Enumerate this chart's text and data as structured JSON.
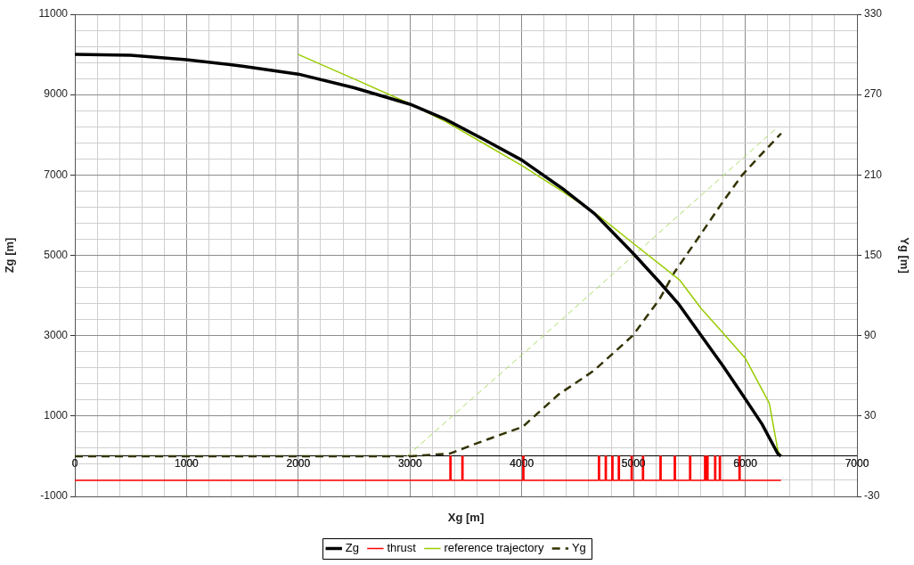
{
  "chart_data": {
    "type": "line",
    "xlabel": "Xg [m]",
    "ylabel": "Zg [m]",
    "y2label": "Yg [m]",
    "xlim": [
      0,
      7000
    ],
    "xticks": [
      0,
      {
        "value": 200,
        "label": null
      },
      {
        "value": 400,
        "label": null
      },
      {
        "value": 600,
        "label": null
      },
      {
        "value": 800,
        "label": null
      },
      1000,
      {
        "value": 1200,
        "label": null
      },
      {
        "value": 1400,
        "label": null
      },
      {
        "value": 1600,
        "label": null
      },
      {
        "value": 1800,
        "label": null
      },
      2000,
      {
        "value": 2200,
        "label": null
      },
      {
        "value": 2400,
        "label": null
      },
      {
        "value": 2600,
        "label": null
      },
      {
        "value": 2800,
        "label": null
      },
      3000,
      {
        "value": 3200,
        "label": null
      },
      {
        "value": 3400,
        "label": null
      },
      {
        "value": 3600,
        "label": null
      },
      {
        "value": 3800,
        "label": null
      },
      4000,
      {
        "value": 4200,
        "label": null
      },
      {
        "value": 4400,
        "label": null
      },
      {
        "value": 4600,
        "label": null
      },
      {
        "value": 4800,
        "label": null
      },
      5000,
      {
        "value": 5200,
        "label": null
      },
      {
        "value": 5400,
        "label": null
      },
      {
        "value": 5600,
        "label": null
      },
      {
        "value": 5800,
        "label": null
      },
      6000,
      {
        "value": 6200,
        "label": null
      },
      {
        "value": 6400,
        "label": null
      },
      {
        "value": 6600,
        "label": null
      },
      {
        "value": 6800,
        "label": null
      },
      7000
    ],
    "ylim": [
      -1000,
      11000
    ],
    "yticks": [
      -1000,
      {
        "value": -600,
        "label": null
      },
      {
        "value": -200,
        "label": null
      },
      {
        "value": 200,
        "label": null
      },
      {
        "value": 600,
        "label": null
      },
      1000,
      {
        "value": 1400,
        "label": null
      },
      {
        "value": 1800,
        "label": null
      },
      {
        "value": 2200,
        "label": null
      },
      {
        "value": 2600,
        "label": null
      },
      3000,
      {
        "value": 3400,
        "label": null
      },
      {
        "value": 3800,
        "label": null
      },
      {
        "value": 4200,
        "label": null
      },
      {
        "value": 4600,
        "label": null
      },
      5000,
      {
        "value": 5400,
        "label": null
      },
      {
        "value": 5800,
        "label": null
      },
      {
        "value": 6200,
        "label": null
      },
      {
        "value": 6600,
        "label": null
      },
      7000,
      {
        "value": 7400,
        "label": null
      },
      {
        "value": 7800,
        "label": null
      },
      {
        "value": 8200,
        "label": null
      },
      {
        "value": 8600,
        "label": null
      },
      9000,
      {
        "value": 9400,
        "label": null
      },
      {
        "value": 9800,
        "label": null
      },
      {
        "value": 10200,
        "label": null
      },
      {
        "value": 10600,
        "label": null
      },
      11000
    ],
    "y2lim": [
      -30,
      330
    ],
    "y2ticks": [
      -30,
      30,
      90,
      150,
      210,
      270,
      330
    ],
    "grid": true,
    "legend": "bottom",
    "marker": "none",
    "series": [
      {
        "name": "Zg",
        "color": "#000000",
        "line_style": "solid",
        "x": [
          0,
          500,
          1000,
          1500,
          2000,
          2500,
          3000,
          3300,
          3650,
          4000,
          4380,
          4650,
          5000,
          5230,
          5400,
          5604,
          5800,
          5973,
          6150,
          6292,
          6320
        ],
        "values": [
          10000,
          9980,
          9870,
          9710,
          9510,
          9170,
          8760,
          8410,
          7900,
          7370,
          6630,
          6040,
          5040,
          4340,
          3800,
          3010,
          2250,
          1540,
          800,
          60,
          0
        ]
      },
      {
        "name": "thrust",
        "color": "#ff0000",
        "line_style": "solid",
        "x": [
          0,
          3357,
          3357,
          3367,
          3367,
          3464,
          3464,
          3474,
          3474,
          4009,
          4009,
          4019,
          4019,
          4686,
          4686,
          4696,
          4696,
          4747,
          4747,
          4757,
          4757,
          4806,
          4806,
          4816,
          4816,
          4864,
          4864,
          4874,
          4874,
          4979,
          4979,
          4989,
          4989,
          5080,
          5080,
          5090,
          5090,
          5237,
          5237,
          5247,
          5247,
          5365,
          5365,
          5375,
          5375,
          5502,
          5502,
          5512,
          5512,
          5636,
          5636,
          5646,
          5646,
          5657,
          5657,
          5667,
          5667,
          5726,
          5726,
          5736,
          5736,
          5768,
          5768,
          5778,
          5778,
          5944,
          5944,
          5954,
          5954,
          6320
        ],
        "values": [
          -600,
          -600,
          0,
          0,
          -600,
          -600,
          0,
          0,
          -600,
          -600,
          0,
          0,
          -600,
          -600,
          0,
          0,
          -600,
          -600,
          0,
          0,
          -600,
          -600,
          0,
          0,
          -600,
          -600,
          0,
          0,
          -600,
          -600,
          0,
          0,
          -600,
          -600,
          0,
          0,
          -600,
          -600,
          0,
          0,
          -600,
          -600,
          0,
          0,
          -600,
          -600,
          0,
          0,
          -600,
          -600,
          0,
          0,
          -600,
          -600,
          0,
          0,
          -600,
          -600,
          0,
          0,
          -600,
          -600,
          0,
          0,
          -600,
          -600,
          0,
          0,
          -600,
          -600
        ]
      },
      {
        "name": "reference trajectory",
        "color": "#99cc00",
        "line_style": "solid",
        "x": [
          2000,
          2500,
          3000,
          3317,
          3650,
          4009,
          4380,
          4700,
          4992,
          5415,
          5604,
          5800,
          6002,
          6215,
          6292,
          6320
        ],
        "values": [
          10000,
          9390,
          8770,
          8330,
          7800,
          7220,
          6560,
          5960,
          5310,
          4380,
          3680,
          3070,
          2430,
          1320,
          140,
          0
        ]
      },
      {
        "name": "Yg",
        "color": "#333300",
        "line_style": "dashed",
        "axis": "y2",
        "x": [
          0,
          1000,
          2000,
          3000,
          3357,
          3610,
          4009,
          4328,
          4647,
          4992,
          5231,
          5364,
          5604,
          5800,
          5973,
          6150,
          6321
        ],
        "values": [
          0,
          0,
          0,
          0,
          2,
          10,
          22,
          46,
          64,
          90,
          117,
          137,
          166,
          190,
          210,
          226,
          241
        ]
      },
      {
        "color": "#aadd66",
        "line_style": "dashed",
        "axis": "y2",
        "x": [
          2972,
          4195,
          6281
        ],
        "values": [
          0,
          90,
          245
        ]
      }
    ]
  }
}
